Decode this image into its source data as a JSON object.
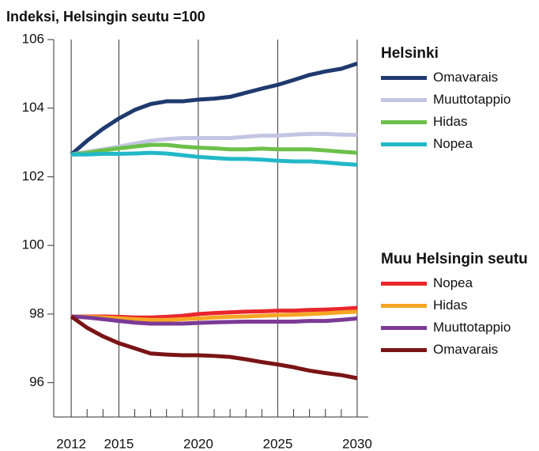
{
  "chart_data": {
    "type": "line",
    "title": "Indeksi, Helsingin seutu =100",
    "x": [
      2012,
      2013,
      2014,
      2015,
      2016,
      2017,
      2018,
      2019,
      2020,
      2021,
      2022,
      2023,
      2024,
      2025,
      2026,
      2027,
      2028,
      2029,
      2030
    ],
    "xlim": [
      2010.9,
      2030.7
    ],
    "xticks": [
      2012,
      2015,
      2020,
      2025,
      2030
    ],
    "xminorticks": [
      2013,
      2014,
      2016,
      2017,
      2018,
      2019,
      2021,
      2022,
      2023,
      2024,
      2026,
      2027,
      2028,
      2029
    ],
    "ylim": [
      95,
      106
    ],
    "yticks": [
      96,
      98,
      100,
      102,
      104,
      106
    ],
    "grid": true,
    "series_groups": [
      {
        "name": "Helsinki",
        "series": [
          {
            "name": "Omavarais",
            "color": "#1f3a6e",
            "values": [
              102.65,
              103.05,
              103.4,
              103.7,
              103.95,
              104.12,
              104.2,
              104.2,
              104.25,
              104.28,
              104.33,
              104.45,
              104.57,
              104.68,
              104.82,
              104.97,
              105.07,
              105.15,
              105.3
            ]
          },
          {
            "name": "Muuttotappio",
            "color": "#c4c4e4",
            "values": [
              102.65,
              102.73,
              102.8,
              102.88,
              102.97,
              103.05,
              103.1,
              103.13,
              103.13,
              103.13,
              103.13,
              103.17,
              103.2,
              103.2,
              103.23,
              103.25,
              103.25,
              103.23,
              103.22
            ]
          },
          {
            "name": "Hidas",
            "color": "#6cc04a",
            "values": [
              102.65,
              102.7,
              102.77,
              102.83,
              102.88,
              102.93,
              102.93,
              102.88,
              102.85,
              102.83,
              102.8,
              102.8,
              102.82,
              102.8,
              102.8,
              102.8,
              102.77,
              102.73,
              102.7
            ]
          },
          {
            "name": "Nopea",
            "color": "#22b8c8",
            "values": [
              102.65,
              102.65,
              102.67,
              102.67,
              102.68,
              102.7,
              102.68,
              102.63,
              102.58,
              102.55,
              102.52,
              102.52,
              102.5,
              102.47,
              102.45,
              102.45,
              102.42,
              102.38,
              102.35
            ]
          }
        ]
      },
      {
        "name": "Muu Helsingin seutu",
        "series": [
          {
            "name": "Nopea",
            "color": "#e8262c",
            "values": [
              97.93,
              97.93,
              97.93,
              97.92,
              97.9,
              97.9,
              97.92,
              97.95,
              98.0,
              98.03,
              98.05,
              98.07,
              98.08,
              98.1,
              98.1,
              98.12,
              98.13,
              98.15,
              98.18
            ]
          },
          {
            "name": "Hidas",
            "color": "#f5a623",
            "values": [
              97.93,
              97.92,
              97.9,
              97.88,
              97.85,
              97.83,
              97.83,
              97.85,
              97.87,
              97.9,
              97.92,
              97.93,
              97.95,
              97.97,
              97.98,
              98.0,
              98.02,
              98.05,
              98.07
            ]
          },
          {
            "name": "Muuttotappio",
            "color": "#7b3a96",
            "values": [
              97.93,
              97.9,
              97.85,
              97.8,
              97.75,
              97.72,
              97.72,
              97.72,
              97.74,
              97.76,
              97.77,
              97.78,
              97.78,
              97.78,
              97.78,
              97.8,
              97.8,
              97.83,
              97.87
            ]
          },
          {
            "name": "Omavarais",
            "color": "#7a1416",
            "values": [
              97.93,
              97.6,
              97.35,
              97.15,
              97.0,
              96.85,
              96.82,
              96.8,
              96.8,
              96.78,
              96.75,
              96.68,
              96.6,
              96.53,
              96.45,
              96.35,
              96.28,
              96.22,
              96.13
            ]
          }
        ]
      }
    ]
  }
}
